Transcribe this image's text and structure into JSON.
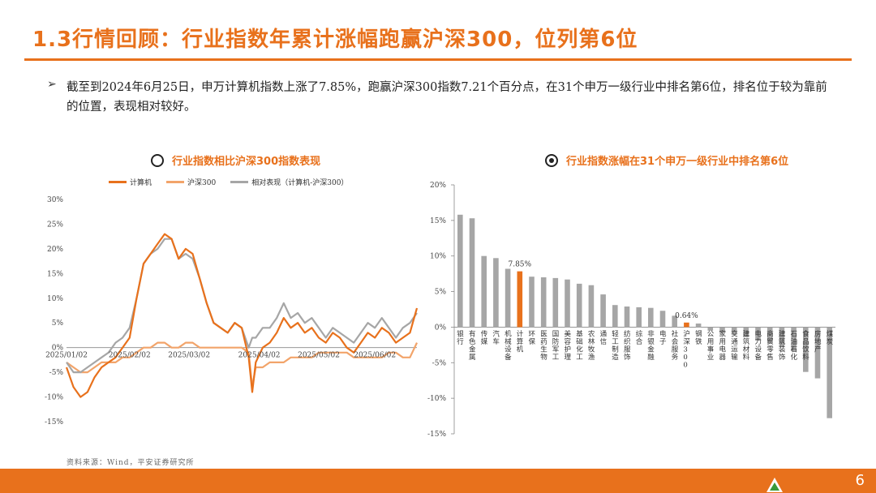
{
  "header": {
    "title": "1.3行情回顾：行业指数年累计涨幅跑赢沪深300，位列第6位"
  },
  "summary": {
    "bullet": "➢",
    "text": "截至到2024年6月25日，申万计算机指数上涨了7.85%，跑赢沪深300指数7.21个百分点，在31个申万一级行业中排名第6位，排名位于较为靠前的位置，表现相对较好。"
  },
  "left_chart": {
    "heading": "行业指数相比沪深300指数表现"
  },
  "right_chart": {
    "heading": "行业指数涨幅在31个申万一级行业中排名第6位"
  },
  "footer": {
    "source": "资料来源：Wind，平安证券研究所",
    "page_number": "6"
  },
  "colors": {
    "accent": "#e8711c",
    "computer": "#e8711c",
    "hs300": "#f2a46a",
    "relative": "#a6a6a6",
    "bar_default": "#a6a6a6",
    "bar_highlight": "#e8711c"
  },
  "chart_data": [
    {
      "type": "line",
      "title": "行业指数相比沪深300指数表现",
      "ylim": [
        -15,
        30
      ],
      "yticks": [
        -15,
        -10,
        -5,
        0,
        5,
        10,
        15,
        20,
        25,
        30
      ],
      "ytick_labels": [
        "-15%",
        "-10%",
        "-5%",
        "0%",
        "5%",
        "10%",
        "15%",
        "20%",
        "25%",
        "30%"
      ],
      "xtick_labels": [
        "2025/01/02",
        "2025/02/02",
        "2025/03/02",
        "2025/04/02",
        "2025/05/02",
        "2025/06/02"
      ],
      "xtick_positions": [
        0,
        0.18,
        0.35,
        0.55,
        0.72,
        0.88
      ],
      "legend_placement": "top",
      "grid": false,
      "x": [
        0,
        0.02,
        0.04,
        0.06,
        0.08,
        0.1,
        0.12,
        0.14,
        0.16,
        0.18,
        0.2,
        0.22,
        0.24,
        0.26,
        0.28,
        0.3,
        0.32,
        0.34,
        0.36,
        0.38,
        0.4,
        0.42,
        0.44,
        0.46,
        0.48,
        0.5,
        0.52,
        0.53,
        0.54,
        0.56,
        0.58,
        0.6,
        0.62,
        0.64,
        0.66,
        0.68,
        0.7,
        0.72,
        0.74,
        0.76,
        0.78,
        0.8,
        0.82,
        0.84,
        0.86,
        0.88,
        0.9,
        0.92,
        0.94,
        0.96,
        0.98,
        1.0
      ],
      "series": [
        {
          "name": "计算机",
          "values": [
            -4,
            -8,
            -10,
            -9,
            -6,
            -4,
            -3,
            -2,
            0,
            2,
            10,
            17,
            19,
            21,
            23,
            22,
            18,
            20,
            19,
            14,
            9,
            5,
            4,
            3,
            5,
            4,
            -2,
            -9,
            -3,
            0,
            1,
            3,
            6,
            4,
            5,
            3,
            4,
            2,
            1,
            3,
            2,
            0,
            -1,
            1,
            3,
            2,
            4,
            3,
            1,
            2,
            3,
            8
          ]
        },
        {
          "name": "沪深300",
          "values": [
            -3,
            -4,
            -5,
            -5,
            -4,
            -3,
            -3,
            -3,
            -2,
            -2,
            -1,
            0,
            0,
            1,
            1,
            0,
            0,
            1,
            1,
            0,
            0,
            0,
            0,
            0,
            0,
            0,
            -1,
            -8,
            -4,
            -4,
            -3,
            -3,
            -3,
            -2,
            -2,
            -2,
            -2,
            -1,
            -1,
            -1,
            -1,
            -1,
            -2,
            -2,
            -2,
            -2,
            -2,
            -1,
            -1,
            -2,
            -2,
            1
          ]
        },
        {
          "name": "相对表现（计算机-沪深300）",
          "values": [
            -3,
            -5,
            -5,
            -4,
            -3,
            -2,
            -1,
            1,
            2,
            4,
            10,
            17,
            19,
            20,
            22,
            22,
            18,
            19,
            18,
            14,
            9,
            5,
            4,
            3,
            5,
            4,
            0,
            2,
            2,
            4,
            4,
            6,
            9,
            6,
            7,
            5,
            6,
            4,
            2,
            4,
            3,
            2,
            1,
            3,
            5,
            4,
            6,
            4,
            2,
            4,
            5,
            7
          ]
        }
      ]
    },
    {
      "type": "bar",
      "title": "行业指数涨幅在31个申万一级行业中排名第6位",
      "ylim": [
        -15,
        20
      ],
      "yticks": [
        -15,
        -10,
        -5,
        0,
        5,
        10,
        15,
        20
      ],
      "ytick_labels": [
        "-15%",
        "-10%",
        "-5%",
        "0%",
        "5%",
        "10%",
        "15%",
        "20%"
      ],
      "grid": false,
      "categories": [
        "银行",
        "有色金属",
        "传媒",
        "汽车",
        "机械设备",
        "计算机",
        "环保",
        "医药生物",
        "国防军工",
        "美容护理",
        "基础化工",
        "农林牧渔",
        "通信",
        "轻工制造",
        "纺织服饰",
        "综合",
        "非银金融",
        "电子",
        "社会服务",
        "沪深300",
        "钢铁",
        "公用事业",
        "家用电器",
        "交通运输",
        "建筑材料",
        "电力设备",
        "商贸零售",
        "建筑装饰",
        "石油石化",
        "食品饮料",
        "房地产",
        "煤炭"
      ],
      "values": [
        15.8,
        15.3,
        10.0,
        9.7,
        8.2,
        7.85,
        7.1,
        7.0,
        6.9,
        6.7,
        6.1,
        5.9,
        4.6,
        3.1,
        2.9,
        2.8,
        2.7,
        2.3,
        1.6,
        0.64,
        0.5,
        -0.5,
        -0.8,
        -1.1,
        -1.4,
        -1.9,
        -2.3,
        -2.8,
        -3.4,
        -6.3,
        -7.2,
        -12.8
      ],
      "highlight": [
        "计算机",
        "沪深300"
      ],
      "data_labels": [
        {
          "category": "计算机",
          "text": "7.85%"
        },
        {
          "category": "沪深300",
          "text": "0.64%"
        }
      ]
    }
  ]
}
